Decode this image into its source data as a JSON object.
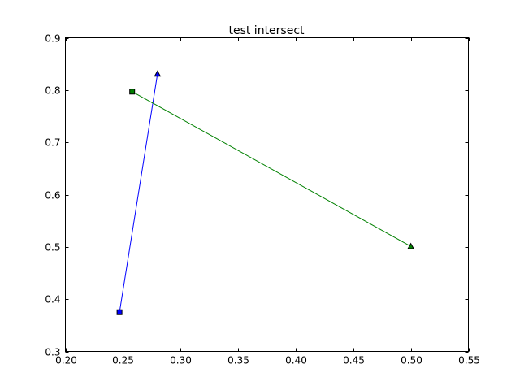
{
  "chart_data": {
    "type": "line",
    "title": "test intersect",
    "xlabel": "",
    "ylabel": "",
    "xlim": [
      0.2,
      0.55
    ],
    "ylim": [
      0.3,
      0.9
    ],
    "x_ticks": [
      "0.20",
      "0.25",
      "0.30",
      "0.35",
      "0.40",
      "0.45",
      "0.50",
      "0.55"
    ],
    "y_ticks": [
      "0.3",
      "0.4",
      "0.5",
      "0.6",
      "0.7",
      "0.8",
      "0.9"
    ],
    "x_tick_values": [
      0.2,
      0.25,
      0.3,
      0.35,
      0.4,
      0.45,
      0.5,
      0.55
    ],
    "y_tick_values": [
      0.3,
      0.4,
      0.5,
      0.6,
      0.7,
      0.8,
      0.9
    ],
    "grid": false,
    "series": [
      {
        "color": "#0000ff",
        "points": [
          {
            "x": 0.247,
            "y": 0.375,
            "marker": "square"
          },
          {
            "x": 0.28,
            "y": 0.831,
            "marker": "triangle"
          }
        ]
      },
      {
        "color": "#008000",
        "points": [
          {
            "x": 0.258,
            "y": 0.797,
            "marker": "square"
          },
          {
            "x": 0.5,
            "y": 0.501,
            "marker": "triangle"
          }
        ]
      }
    ]
  }
}
